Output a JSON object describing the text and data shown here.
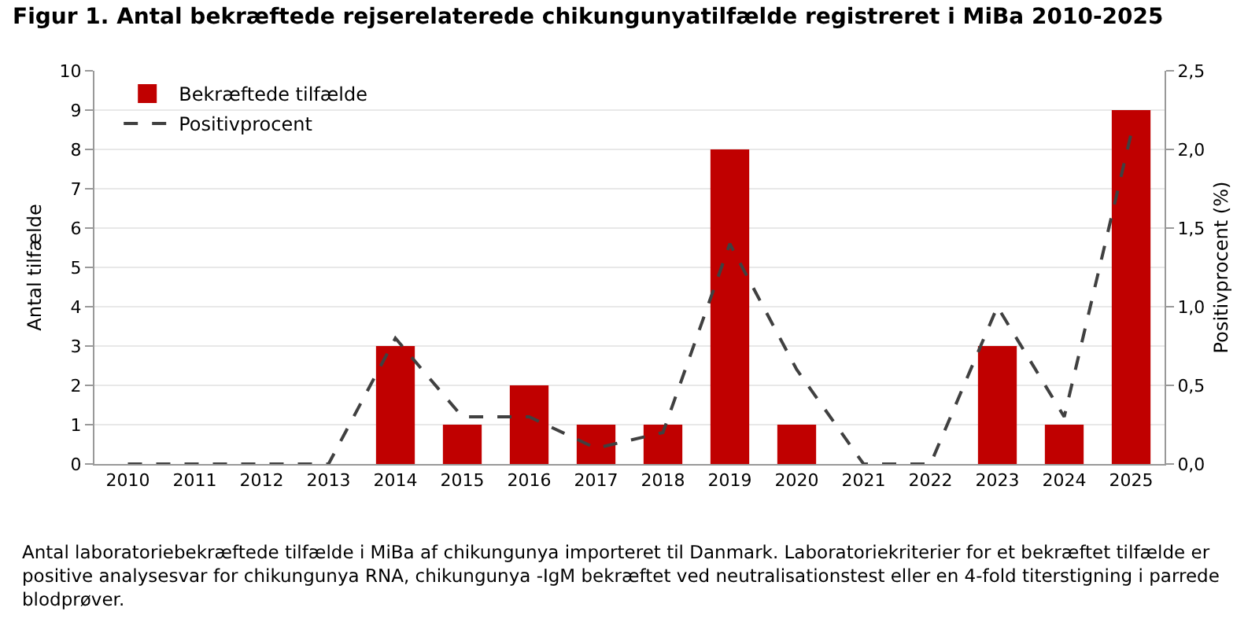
{
  "chart_data": {
    "type": "bar",
    "title": "Figur 1. Antal bekræftede rejserelaterede chikungunyatilfælde registreret i MiBa 2010-2025",
    "categories": [
      "2010",
      "2011",
      "2012",
      "2013",
      "2014",
      "2015",
      "2016",
      "2017",
      "2018",
      "2019",
      "2020",
      "2021",
      "2022",
      "2023",
      "2024",
      "2025"
    ],
    "series": [
      {
        "name": "Bekræftede tilfælde",
        "color": "#c00000",
        "values": [
          0,
          0,
          0,
          0,
          3,
          1,
          2,
          1,
          1,
          8,
          1,
          0,
          0,
          3,
          1,
          9
        ]
      },
      {
        "name": "Positivprocent",
        "type": "line",
        "axis": "y2",
        "color": "#404040",
        "line_style": "dashed",
        "values": [
          0,
          0,
          0,
          0,
          0.8,
          0.3,
          0.3,
          0.1,
          0.2,
          1.4,
          0.6,
          0,
          0,
          1.0,
          0.3,
          2.1
        ]
      }
    ],
    "ylabel": "Antal tilfælde",
    "y2label": "Positivprocent (%)",
    "ylim": [
      0,
      10
    ],
    "yticks": [
      0,
      1,
      2,
      3,
      4,
      5,
      6,
      7,
      8,
      9,
      10
    ],
    "y2lim": [
      0,
      2.5
    ],
    "y2ticks": [
      {
        "value": 0,
        "label": "0,0"
      },
      {
        "value": 0.5,
        "label": "0,5"
      },
      {
        "value": 1,
        "label": "1,0"
      },
      {
        "value": 1.5,
        "label": "1,5"
      },
      {
        "value": 2,
        "label": "2,0"
      },
      {
        "value": 2.5,
        "label": "2,5"
      }
    ],
    "grid": "y",
    "legend": "top left",
    "annotations": [
      "Antal laboratoriebekræftede tilfælde i MiBa af chikungunya importeret til Danmark. Laboratoriekriterier for et bekræftet tilfælde er positive analysesvar for chikungunya RNA, chikungunya -IgM bekræftet ved neutralisationstest eller en 4-fold titerstigning i parrede blodprøver."
    ]
  }
}
